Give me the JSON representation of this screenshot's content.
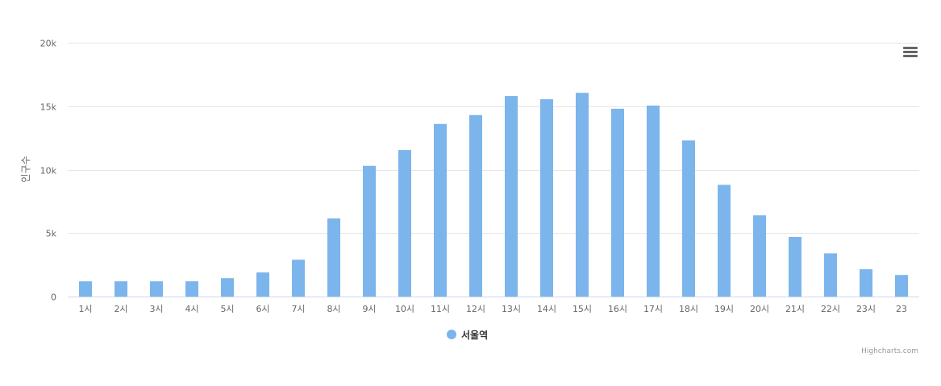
{
  "chart_data": {
    "type": "bar",
    "title": "",
    "xlabel": "",
    "ylabel": "인구수",
    "categories": [
      "1시",
      "2시",
      "3시",
      "4시",
      "5시",
      "6시",
      "7시",
      "8시",
      "9시",
      "10시",
      "11시",
      "12시",
      "13시",
      "14시",
      "15시",
      "16시",
      "17시",
      "18시",
      "19시",
      "20시",
      "21시",
      "22시",
      "23시",
      "23"
    ],
    "series": [
      {
        "name": "서울역",
        "color": "#7cb5ec",
        "values": [
          1200,
          1200,
          1200,
          1200,
          1450,
          1900,
          2900,
          6150,
          10300,
          11550,
          13600,
          14300,
          15800,
          15550,
          16050,
          14800,
          15050,
          12300,
          8800,
          6400,
          4700,
          3400,
          2150,
          1700
        ]
      }
    ],
    "ylim": [
      0,
      20000
    ],
    "yticks": [
      0,
      5000,
      10000,
      15000,
      20000
    ],
    "ytick_labels": [
      "0",
      "5k",
      "10k",
      "15k",
      "20k"
    ],
    "grid": true,
    "legend_position": "bottom-center"
  },
  "ui": {
    "menu_icon": "hamburger-menu-icon",
    "credits": "Highcharts.com"
  }
}
